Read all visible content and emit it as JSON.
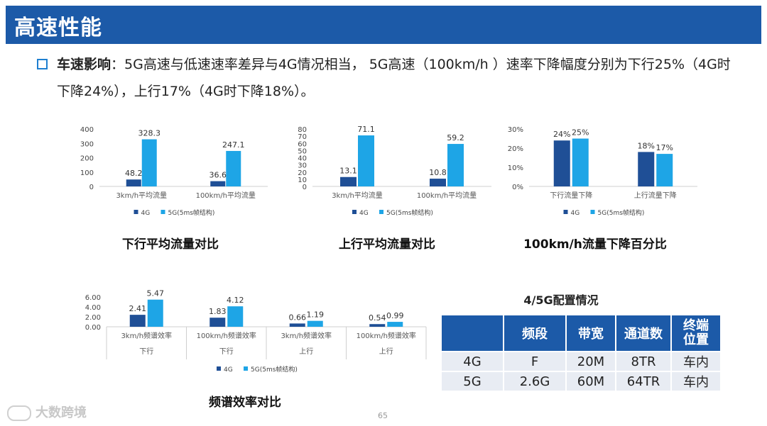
{
  "header": {
    "title": "高速性能"
  },
  "intro": {
    "label": "车速影响",
    "colon": "：",
    "text": "5G高速与低速速率差异与4G情况相当，  5G高速（100km/h ）速率下降幅度分别为下行25%（4G时下降24%），上行17%（4G时下降18%）。"
  },
  "colors": {
    "4G": "#1f4f96",
    "5G": "#1ea5e6",
    "header": "#1c5aa8"
  },
  "chart_data": [
    {
      "id": "dl",
      "type": "bar",
      "title": "下行平均流量对比",
      "categories": [
        "3km/h平均流量",
        "100km/h平均流量"
      ],
      "series": [
        {
          "name": "4G",
          "values": [
            48.2,
            36.6
          ],
          "labels": [
            "48.2",
            "36.6"
          ]
        },
        {
          "name": "5G(5ms帧结构)",
          "values": [
            328.3,
            247.1
          ],
          "labels": [
            "328.3",
            "247.1"
          ]
        }
      ],
      "ylim": [
        0,
        400
      ],
      "yticks": [
        "0",
        "100",
        "200",
        "300",
        "400"
      ],
      "legend": "bottom"
    },
    {
      "id": "ul",
      "type": "bar",
      "title": "上行平均流量对比",
      "categories": [
        "3km/h平均流量",
        "100km/h平均流量"
      ],
      "series": [
        {
          "name": "4G",
          "values": [
            13.1,
            10.8
          ],
          "labels": [
            "13.1",
            "10.8"
          ]
        },
        {
          "name": "5G(5ms帧结构)",
          "values": [
            71.1,
            59.2
          ],
          "labels": [
            "71.1",
            "59.2"
          ]
        }
      ],
      "ylim": [
        0,
        80
      ],
      "yticks": [
        "0",
        "10",
        "20",
        "30",
        "40",
        "50",
        "60",
        "70",
        "80"
      ],
      "legend": "bottom"
    },
    {
      "id": "pct",
      "type": "bar",
      "title": "100km/h流量下降百分比",
      "categories": [
        "下行流量下降",
        "上行流量下降"
      ],
      "series": [
        {
          "name": "4G",
          "values": [
            24,
            18
          ],
          "labels": [
            "24%",
            "18%"
          ]
        },
        {
          "name": "5G(5ms帧结构)",
          "values": [
            25,
            17
          ],
          "labels": [
            "25%",
            "17%"
          ]
        }
      ],
      "ylim": [
        0,
        30
      ],
      "yticks": [
        "0%",
        "10%",
        "20%",
        "30%"
      ],
      "legend": "bottom"
    },
    {
      "id": "se",
      "type": "bar",
      "title": "频谱效率对比",
      "categories": [
        "3km/h频谱效率",
        "100km/h频谱效率",
        "3km/h频谱效率",
        "100km/h频谱效率"
      ],
      "groups": [
        "下行",
        "下行",
        "上行",
        "上行"
      ],
      "series": [
        {
          "name": "4G",
          "values": [
            2.41,
            1.83,
            0.66,
            0.54
          ],
          "labels": [
            "2.41",
            "1.83",
            "0.66",
            "0.54"
          ]
        },
        {
          "name": "5G(5ms帧结构)",
          "values": [
            5.47,
            4.12,
            1.19,
            0.99
          ],
          "labels": [
            "5.47",
            "4.12",
            "1.19",
            "0.99"
          ]
        }
      ],
      "ylim": [
        0,
        6
      ],
      "yticks": [
        "0.00",
        "2.00",
        "4.00",
        "6.00"
      ],
      "legend": "bottom"
    }
  ],
  "config_table": {
    "title": "4/5G配置情况",
    "headers": [
      "",
      "频段",
      "带宽",
      "通道数",
      "终端\n位置"
    ],
    "rows": [
      [
        "4G",
        "F",
        "20M",
        "8TR",
        "车内"
      ],
      [
        "5G",
        "2.6G",
        "60M",
        "64TR",
        "车内"
      ]
    ]
  },
  "watermark": "大数跨境",
  "page_number": "65"
}
